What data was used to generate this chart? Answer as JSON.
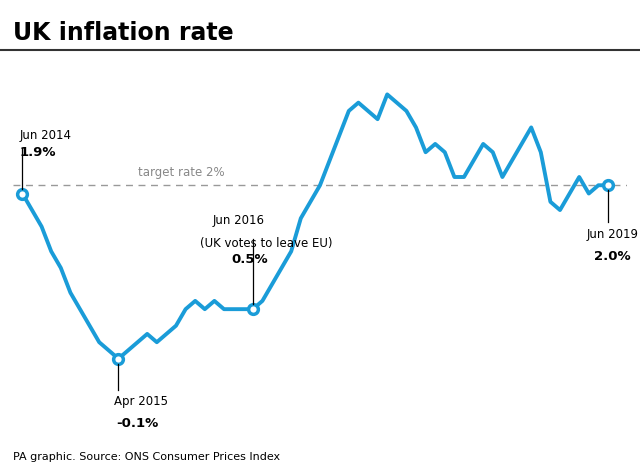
{
  "title": "UK inflation rate",
  "source": "PA graphic. Source: ONS Consumer Prices Index",
  "target_rate": 2.0,
  "target_label": "target rate 2%",
  "line_color": "#1a9cd8",
  "background_color": "#ffffff",
  "x_values": [
    0,
    1,
    2,
    3,
    4,
    5,
    6,
    7,
    8,
    9,
    10,
    11,
    12,
    13,
    14,
    15,
    16,
    17,
    18,
    19,
    20,
    21,
    22,
    23,
    24,
    25,
    26,
    27,
    28,
    29,
    30,
    31,
    32,
    33,
    34,
    35,
    36,
    37,
    38,
    39,
    40,
    41,
    42,
    43,
    44,
    45,
    46,
    47,
    48,
    49,
    50,
    51,
    52,
    53,
    54,
    55,
    56,
    57,
    58,
    59,
    60,
    61
  ],
  "y_values": [
    1.9,
    1.7,
    1.5,
    1.2,
    1.0,
    0.7,
    0.5,
    0.3,
    0.1,
    0.0,
    -0.1,
    0.0,
    0.1,
    0.2,
    0.1,
    0.2,
    0.3,
    0.5,
    0.6,
    0.5,
    0.6,
    0.5,
    0.5,
    0.5,
    0.5,
    0.6,
    0.8,
    1.0,
    1.2,
    1.6,
    1.8,
    2.0,
    2.3,
    2.6,
    2.9,
    3.0,
    2.9,
    2.8,
    3.1,
    3.0,
    2.9,
    2.7,
    2.4,
    2.5,
    2.4,
    2.1,
    2.1,
    2.3,
    2.5,
    2.4,
    2.1,
    2.3,
    2.5,
    2.7,
    2.4,
    1.8,
    1.7,
    1.9,
    2.1,
    1.9,
    2.0,
    2.0
  ],
  "circle_indices": [
    0,
    10,
    24,
    61
  ],
  "ann_jun2014": {
    "x_idx": 0,
    "label": "Jun 2014",
    "value": "1.9%"
  },
  "ann_apr2015": {
    "x_idx": 10,
    "label": "Apr 2015",
    "value": "-0.1%"
  },
  "ann_jun2016": {
    "x_idx": 24,
    "label": "Jun 2016",
    "sublabel": "(UK votes to leave EU)",
    "value": "0.5%"
  },
  "ann_jun2019": {
    "x_idx": 61,
    "label": "Jun 2019",
    "value": "2.0%"
  },
  "xlim": [
    -1,
    63
  ],
  "ylim": [
    -0.9,
    3.5
  ]
}
